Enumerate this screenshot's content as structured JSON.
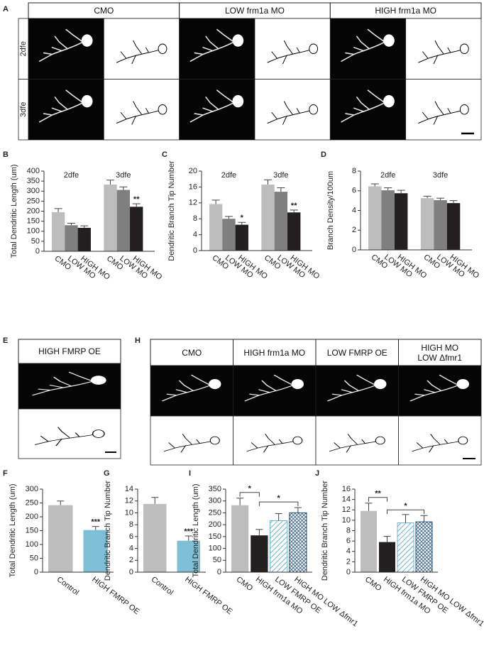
{
  "panel_a": {
    "label": "A",
    "columns": [
      "CMO",
      "LOW frm1a MO",
      "HIGH frm1a MO"
    ],
    "rows": [
      "2dfe",
      "3dfe"
    ]
  },
  "panel_e": {
    "label": "E",
    "columns": [
      "HIGH FMRP OE"
    ]
  },
  "panel_h": {
    "label": "H",
    "columns": [
      "CMO",
      "HIGH frm1a MO",
      "LOW FMRP OE",
      "HIGH MO\nLOW Δfmr1"
    ]
  },
  "chart_data": [
    {
      "type": "grouped_bar",
      "panel": "B",
      "y_label": "Total Dendritic Length (um)",
      "groups": [
        "2dfe",
        "3dfe"
      ],
      "series": [
        {
          "name": "CMO",
          "color": "#bdbdbd",
          "values": [
            195,
            333
          ],
          "errors": [
            18,
            22
          ]
        },
        {
          "name": "LOW MO",
          "color": "#7f7f7f",
          "values": [
            130,
            306
          ],
          "errors": [
            10,
            15
          ]
        },
        {
          "name": "HIGH MO",
          "color": "#231f20",
          "values": [
            117,
            222
          ],
          "errors": [
            10,
            15
          ],
          "significance": [
            null,
            "**"
          ]
        }
      ],
      "ylim": [
        0,
        400
      ],
      "yticks": [
        0,
        50,
        100,
        150,
        200,
        250,
        300,
        350,
        400
      ]
    },
    {
      "type": "grouped_bar",
      "panel": "C",
      "y_label": "Dendritic Branch Tip Number",
      "groups": [
        "2dfe",
        "3dfe"
      ],
      "series": [
        {
          "name": "CMO",
          "color": "#bdbdbd",
          "values": [
            11.7,
            16.6
          ],
          "errors": [
            1.0,
            1.2
          ]
        },
        {
          "name": "LOW MO",
          "color": "#7f7f7f",
          "values": [
            8.0,
            14.8
          ],
          "errors": [
            0.6,
            1.0
          ]
        },
        {
          "name": "HIGH MO",
          "color": "#231f20",
          "values": [
            6.5,
            9.6
          ],
          "errors": [
            0.6,
            0.6
          ],
          "significance": [
            "*",
            "**"
          ]
        }
      ],
      "ylim": [
        0,
        20
      ],
      "yticks": [
        0,
        4,
        8,
        12,
        16,
        20
      ]
    },
    {
      "type": "grouped_bar",
      "panel": "D",
      "y_label": "Branch Density/100um",
      "groups": [
        "2dfe",
        "3dfe"
      ],
      "series": [
        {
          "name": "CMO",
          "color": "#bdbdbd",
          "values": [
            6.45,
            5.25
          ],
          "errors": [
            0.25,
            0.2
          ]
        },
        {
          "name": "LOW MO",
          "color": "#7f7f7f",
          "values": [
            6.05,
            5.05
          ],
          "errors": [
            0.25,
            0.2
          ]
        },
        {
          "name": "HIGH MO",
          "color": "#231f20",
          "values": [
            5.75,
            4.75
          ],
          "errors": [
            0.3,
            0.25
          ]
        }
      ],
      "ylim": [
        0,
        8
      ],
      "yticks": [
        0,
        2,
        4,
        6,
        8
      ]
    },
    {
      "type": "bar",
      "panel": "F",
      "y_label": "Total Dendritic Length (um)",
      "categories": [
        "Control",
        "HIGH FMRP OE"
      ],
      "values": [
        242,
        152
      ],
      "errors": [
        15,
        13
      ],
      "colors": [
        "#bdbdbd",
        "#7fbfd6"
      ],
      "fill_styles": [
        "solid",
        "solid"
      ],
      "significance": [
        null,
        "***"
      ],
      "ylim": [
        0,
        300
      ],
      "yticks": [
        0,
        50,
        100,
        150,
        200,
        250,
        300
      ]
    },
    {
      "type": "bar",
      "panel": "G",
      "y_label": "Dendritic Branch Tip Number",
      "categories": [
        "Control",
        "HIGH FMRP OE"
      ],
      "values": [
        11.5,
        5.3
      ],
      "errors": [
        1.1,
        0.8
      ],
      "colors": [
        "#bdbdbd",
        "#7fbfd6"
      ],
      "fill_styles": [
        "solid",
        "solid"
      ],
      "significance": [
        null,
        "***"
      ],
      "ylim": [
        0,
        14
      ],
      "yticks": [
        0,
        2,
        4,
        6,
        8,
        10,
        12,
        14
      ]
    },
    {
      "type": "bar",
      "panel": "I",
      "y_label": "Total Dendritic Length (um)",
      "categories": [
        "CMO",
        "HIGH frm1a MO",
        "LOW FMRP OE",
        "HIGH MO LOW Δfmr1"
      ],
      "values": [
        282,
        155,
        217,
        250
      ],
      "errors": [
        30,
        25,
        30,
        22
      ],
      "colors": [
        "#bdbdbd",
        "#231f20",
        "#6fb3d0",
        "#1f4e79"
      ],
      "fill_styles": [
        "solid",
        "solid",
        "hatch",
        "crosshatch"
      ],
      "brackets": [
        {
          "label": "*",
          "from": 0,
          "to": 1
        },
        {
          "label": "*",
          "from": 1,
          "to": 3
        }
      ],
      "ylim": [
        0,
        350
      ],
      "yticks": [
        0,
        50,
        100,
        150,
        200,
        250,
        300,
        350
      ]
    },
    {
      "type": "bar",
      "panel": "J",
      "y_label": "Dendritic Branch Tip Number",
      "categories": [
        "CMO",
        "HIGH frm1a MO",
        "LOW FMRP OE",
        "HIGH MO LOW Δfmr1"
      ],
      "values": [
        11.8,
        5.8,
        9.5,
        9.7
      ],
      "errors": [
        1.5,
        1.1,
        1.6,
        1.2
      ],
      "colors": [
        "#bdbdbd",
        "#231f20",
        "#6fb3d0",
        "#1f4e79"
      ],
      "fill_styles": [
        "solid",
        "solid",
        "hatch",
        "crosshatch"
      ],
      "brackets": [
        {
          "label": "**",
          "from": 0,
          "to": 1
        },
        {
          "label": "*",
          "from": 1,
          "to": 3
        }
      ],
      "ylim": [
        0,
        16
      ],
      "yticks": [
        0,
        2,
        4,
        6,
        8,
        10,
        12,
        14,
        16
      ]
    }
  ]
}
